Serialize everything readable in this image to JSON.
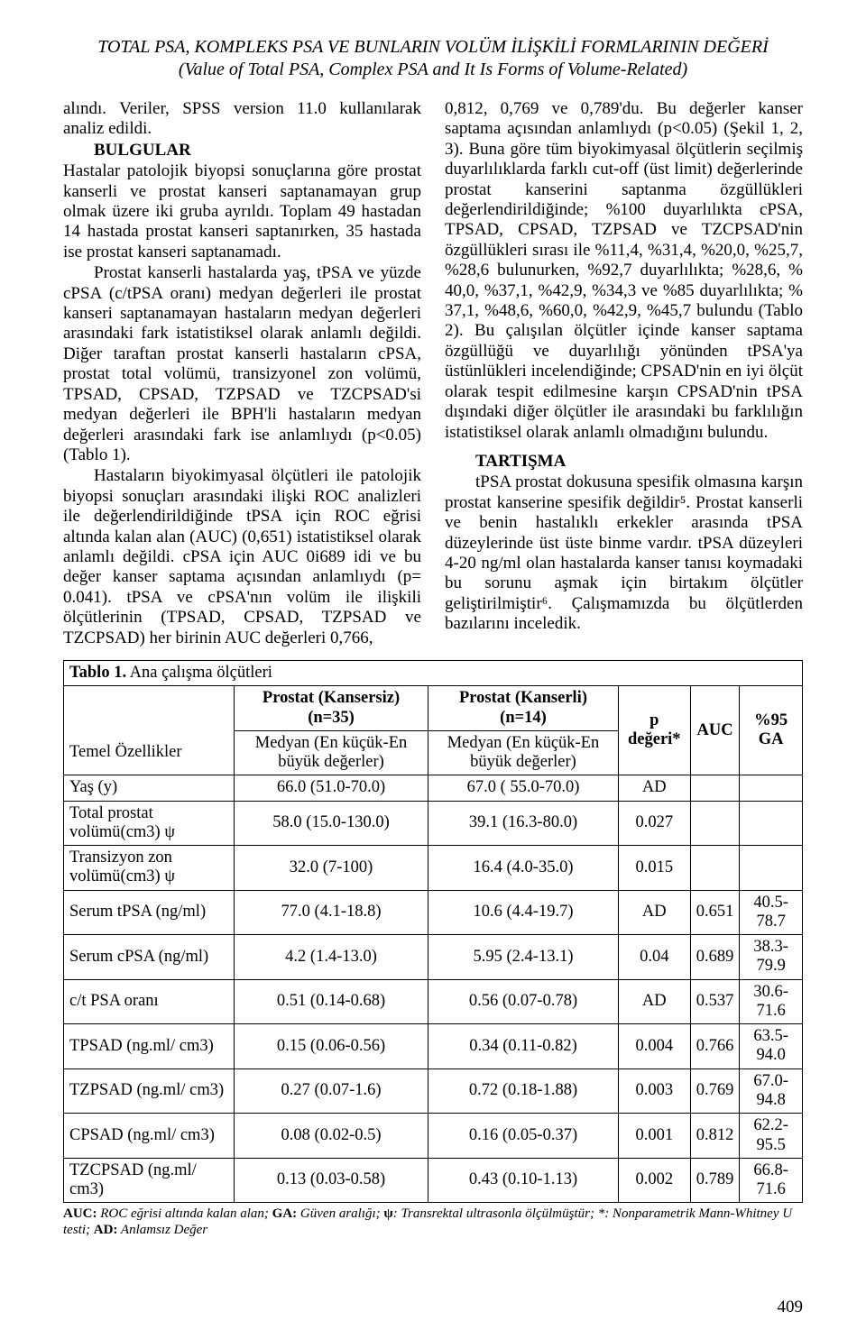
{
  "header": {
    "line1": "TOTAL PSA, KOMPLEKS PSA VE BUNLARIN VOLÜM İLİŞKİLİ FORMLARININ DEĞERİ",
    "line2": "(Value of Total PSA, Complex PSA and It Is Forms of Volume-Related)"
  },
  "left": {
    "p1": "alındı. Veriler, SPSS version 11.0 kullanılarak analiz edildi.",
    "bulgular_head": "BULGULAR",
    "p2a": "Hastalar patolojik biyopsi sonuçlarına göre prostat kanserli ve prostat kanseri saptanamayan grup olmak üzere iki gruba ayrıldı. Toplam 49 hastadan 14 hastada prostat kanseri saptanırken, 35 hastada ise prostat kanseri saptanamadı.",
    "p3": "Prostat kanserli hastalarda yaş, tPSA ve yüzde cPSA (c/tPSA oranı) medyan değerleri ile prostat kanseri saptanamayan hastaların medyan değerleri arasındaki fark istatistiksel olarak anlamlı değildi. Diğer taraftan prostat kanserli hastaların cPSA, prostat total volümü, transizyonel zon volümü, TPSAD, CPSAD, TZPSAD ve TZCPSAD'si medyan değerleri ile BPH'li hastaların medyan değerleri arasındaki fark ise anlamlıydı (p<0.05) (Tablo 1).",
    "p4": "Hastaların biyokimyasal ölçütleri ile patolojik biyopsi sonuçları arasındaki ilişki ROC analizleri ile değerlendirildiğinde tPSA için ROC eğrisi altında kalan alan (AUC) (0,651) istatistiksel olarak anlamlı değildi. cPSA için AUC 0i689 idi ve bu değer kanser saptama açısından anlamlıydı (p= 0.041). tPSA ve cPSA'nın volüm ile ilişkili ölçütlerinin (TPSAD, CPSAD, TZPSAD ve TZCPSAD) her birinin AUC değerleri 0,766,"
  },
  "right": {
    "p1": "0,812, 0,769 ve 0,789'du. Bu değerler kanser saptama açısından anlamlıydı (p<0.05) (Şekil 1, 2, 3). Buna göre tüm biyokimyasal ölçütlerin seçilmiş duyarlılıklarda farklı cut-off (üst limit) değerlerinde prostat kanserini saptanma özgüllükleri değerlendirildiğinde; %100 duyarlılıkta cPSA, TPSAD, CPSAD, TZPSAD ve TZCPSAD'nin özgüllükleri sırası ile %11,4, %31,4, %20,0, %25,7, %28,6 bulunurken, %92,7 duyarlılıkta; %28,6, % 40,0, %37,1, %42,9, %34,3 ve %85 duyarlılıkta; % 37,1, %48,6, %60,0, %42,9, %45,7 bulundu (Tablo 2). Bu çalışılan ölçütler içinde kanser saptama özgüllüğü ve duyarlılığı yönünden tPSA'ya üstünlükleri incelendiğinde; CPSAD'nin en iyi ölçüt olarak tespit edilmesine karşın CPSAD'nin tPSA dışındaki diğer ölçütler ile arasındaki bu farklılığın istatistiksel olarak anlamlı olmadığını bulundu.",
    "tartisma_head": "TARTIŞMA",
    "p2": "tPSA prostat dokusuna spesifik olmasına karşın prostat kanserine spesifik değildir⁵. Prostat kanserli ve benin hastalıklı erkekler arasında tPSA düzeylerinde üst üste binme vardır. tPSA düzeyleri 4-20 ng/ml olan hastalarda kanser tanısı koymadaki bu sorunu aşmak için birtakım ölçütler geliştirilmiştir⁶. Çalışmamızda bu ölçütlerden bazılarını inceledik."
  },
  "table": {
    "caption_bold": "Tablo 1.",
    "caption_rest": " Ana çalışma ölçütleri",
    "head": {
      "c1_row1": "",
      "c2_row1": "Prostat (Kansersiz) (n=35)",
      "c3_row1": "Prostat (Kanserli) (n=14)",
      "c4_row1": "p değeri*",
      "c5_row1": "AUC",
      "c6_row1": "%95 GA",
      "c1_row2": "Temel Özellikler",
      "c2_row2": "Medyan (En küçük-En büyük değerler)",
      "c3_row2": "Medyan (En küçük-En büyük değerler)"
    },
    "rows": [
      {
        "label": "Yaş (y)",
        "a": "66.0 (51.0-70.0)",
        "b": "67.0 ( 55.0-70.0)",
        "p": "AD",
        "auc": "",
        "ga": ""
      },
      {
        "label": "Total prostat volümü(cm3) ψ",
        "a": "58.0 (15.0-130.0)",
        "b": "39.1 (16.3-80.0)",
        "p": "0.027",
        "auc": "",
        "ga": ""
      },
      {
        "label": "Transizyon zon volümü(cm3) ψ",
        "a": "32.0 (7-100)",
        "b": "16.4 (4.0-35.0)",
        "p": "0.015",
        "auc": "",
        "ga": ""
      },
      {
        "label": "Serum tPSA (ng/ml)",
        "a": "77.0 (4.1-18.8)",
        "b": "10.6 (4.4-19.7)",
        "p": "AD",
        "auc": "0.651",
        "ga": "40.5-78.7"
      },
      {
        "label": "Serum cPSA (ng/ml)",
        "a": "4.2 (1.4-13.0)",
        "b": "5.95 (2.4-13.1)",
        "p": "0.04",
        "auc": "0.689",
        "ga": "38.3-79.9"
      },
      {
        "label": "c/t PSA oranı",
        "a": "0.51 (0.14-0.68)",
        "b": "0.56 (0.07-0.78)",
        "p": "AD",
        "auc": "0.537",
        "ga": "30.6-71.6"
      },
      {
        "label": "TPSAD (ng.ml/ cm3)",
        "a": "0.15 (0.06-0.56)",
        "b": "0.34 (0.11-0.82)",
        "p": "0.004",
        "auc": "0.766",
        "ga": "63.5-94.0"
      },
      {
        "label": "TZPSAD (ng.ml/ cm3)",
        "a": "0.27 (0.07-1.6)",
        "b": "0.72 (0.18-1.88)",
        "p": "0.003",
        "auc": "0.769",
        "ga": "67.0-94.8"
      },
      {
        "label": "CPSAD (ng.ml/ cm3)",
        "a": "0.08 (0.02-0.5)",
        "b": "0.16 (0.05-0.37)",
        "p": "0.001",
        "auc": "0.812",
        "ga": "62.2-95.5"
      },
      {
        "label": "TZCPSAD (ng.ml/ cm3)",
        "a": "0.13 (0.03-0.58)",
        "b": "0.43 (0.10-1.13)",
        "p": "0.002",
        "auc": "0.789",
        "ga": "66.8-71.6"
      }
    ],
    "footnote": "AUC: ROC eğrisi altında kalan alan; GA: Güven aralığı; ψ: Transrektal  ultrasonla ölçülmüştür; *: Nonparametrik Mann-Whitney U  testi; AD: Anlamsız Değer"
  },
  "pagenum": "409"
}
